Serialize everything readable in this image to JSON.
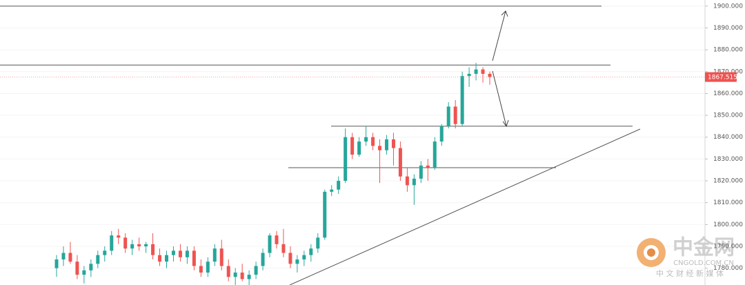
{
  "chart_data": {
    "type": "candlestick",
    "open": [
      1780,
      1784,
      1787,
      1783,
      1777,
      1779,
      1782,
      1786,
      1788,
      1795,
      1794,
      1789,
      1791,
      1790,
      1791,
      1786,
      1783,
      1786,
      1788,
      1785,
      1788,
      1781,
      1778,
      1783,
      1789,
      1781,
      1776,
      1778,
      1775,
      1777,
      1781,
      1787,
      1795,
      1791,
      1787,
      1782,
      1784,
      1786,
      1789,
      1794,
      1815,
      1816,
      1820,
      1840,
      1832,
      1838,
      1840,
      1836,
      1834,
      1839,
      1835,
      1822,
      1818,
      1821,
      1827,
      1826,
      1838,
      1845,
      1854,
      1846,
      1868,
      1869,
      1871,
      1869
    ],
    "high": [
      1786,
      1790,
      1792,
      1786,
      1781,
      1784,
      1788,
      1790,
      1797,
      1798,
      1796,
      1793,
      1794,
      1792,
      1796,
      1789,
      1788,
      1790,
      1791,
      1790,
      1790,
      1784,
      1785,
      1791,
      1793,
      1784,
      1780,
      1782,
      1779,
      1783,
      1789,
      1796,
      1797,
      1798,
      1790,
      1786,
      1788,
      1791,
      1796,
      1816,
      1818,
      1822,
      1844,
      1842,
      1840,
      1845,
      1842,
      1839,
      1841,
      1842,
      1838,
      1826,
      1823,
      1829,
      1830,
      1840,
      1846,
      1856,
      1857,
      1870,
      1872,
      1874,
      1872,
      1870
    ],
    "low": [
      1776,
      1781,
      1782,
      1775,
      1773,
      1776,
      1780,
      1783,
      1786,
      1791,
      1787,
      1786,
      1788,
      1787,
      1784,
      1781,
      1780,
      1783,
      1783,
      1782,
      1779,
      1776,
      1776,
      1781,
      1779,
      1774,
      1772,
      1774,
      1772,
      1775,
      1779,
      1785,
      1789,
      1785,
      1780,
      1778,
      1781,
      1783,
      1787,
      1793,
      1813,
      1814,
      1819,
      1830,
      1831,
      1836,
      1834,
      1819,
      1832,
      1827,
      1820,
      1815,
      1809,
      1819,
      1820,
      1825,
      1836,
      1844,
      1844,
      1845,
      1863,
      1866,
      1865,
      1864
    ],
    "close": [
      1784,
      1787,
      1783,
      1777,
      1779,
      1782,
      1786,
      1788,
      1795,
      1794,
      1789,
      1791,
      1790,
      1791,
      1786,
      1783,
      1786,
      1788,
      1785,
      1788,
      1781,
      1778,
      1783,
      1789,
      1781,
      1776,
      1778,
      1775,
      1777,
      1781,
      1787,
      1795,
      1791,
      1787,
      1782,
      1784,
      1786,
      1789,
      1794,
      1815,
      1816,
      1820,
      1840,
      1832,
      1838,
      1840,
      1836,
      1834,
      1839,
      1835,
      1822,
      1818,
      1821,
      1827,
      1826,
      1838,
      1845,
      1854,
      1846,
      1868,
      1869,
      1871,
      1869,
      1867.515
    ],
    "up_color": "#26a69a",
    "down_color": "#ef5350",
    "ylim": [
      1772.3,
      1902.8
    ],
    "yticks": [
      {
        "value": 1780,
        "label": "1780.000"
      },
      {
        "value": 1790,
        "label": "1790.000"
      },
      {
        "value": 1800,
        "label": "1800.000"
      },
      {
        "value": 1810,
        "label": "1810.000"
      },
      {
        "value": 1820,
        "label": "1820.000"
      },
      {
        "value": 1830,
        "label": "1830.000"
      },
      {
        "value": 1840,
        "label": "1840.000"
      },
      {
        "value": 1850,
        "label": "1850.000"
      },
      {
        "value": 1860,
        "label": "1860.000"
      },
      {
        "value": 1870,
        "label": "1870.000"
      },
      {
        "value": 1880,
        "label": "1880.000"
      },
      {
        "value": 1890,
        "label": "1890.000"
      },
      {
        "value": 1900,
        "label": "1900.000"
      }
    ],
    "grid": true,
    "levels": [
      1900,
      1873,
      1845,
      1826
    ],
    "watermark": {
      "logo": "中金网",
      "site": "CNGOLD.COM.CN",
      "slogan": "中 文 财 经 新 媒 体"
    }
  }
}
